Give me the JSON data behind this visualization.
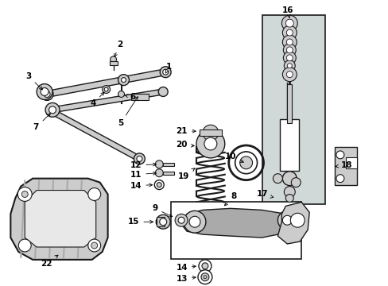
{
  "bg_color": "#ffffff",
  "fig_width": 4.89,
  "fig_height": 3.6,
  "dpi": 100,
  "line_color": "#1a1a1a",
  "fill_light": "#cccccc",
  "fill_med": "#aaaaaa",
  "fill_dark": "#888888",
  "box_fill": "#e0e8e8",
  "shock_fill": "#d0d8d8"
}
